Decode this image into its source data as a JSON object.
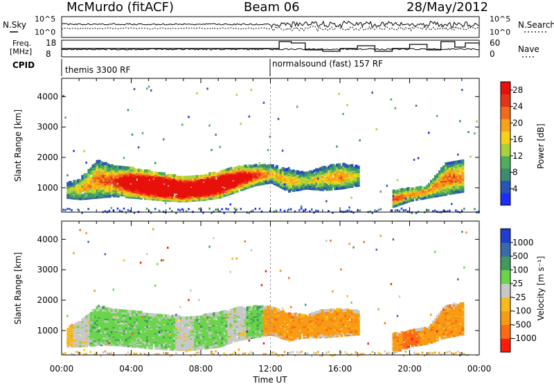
{
  "header": {
    "station": "McMurdo (fitACF)",
    "beam": "Beam 06",
    "date": "28/May/2012"
  },
  "noise_panel": {
    "left_label": "N.Sky",
    "right_label": "N.Search",
    "left_ticks": [
      "10^5",
      "10^0"
    ],
    "right_ticks": [
      "10^5",
      "10^0"
    ]
  },
  "freq_panel": {
    "left_label_line1": "Freq.",
    "left_label_line2": "[MHz]",
    "left_ticks": [
      "18",
      "8"
    ],
    "right_label": "Nave",
    "right_ticks": [
      "60",
      "0"
    ]
  },
  "cpid": {
    "label": "CPID",
    "modes": [
      "themis 3300 RF",
      "normalsound (fast) 157 RF"
    ]
  },
  "chart_data": [
    {
      "type": "heatmap",
      "title": "Beam 06",
      "xlabel": "Time UT",
      "ylabel": "Slant Range [km]",
      "x_ticks": [
        "00:00",
        "04:00",
        "08:00",
        "12:00",
        "16:00",
        "20:00",
        "00:00"
      ],
      "x_range_hours": [
        0,
        24
      ],
      "ylim": [
        200,
        4600
      ],
      "y_ticks": [
        1000,
        2000,
        3000,
        4000
      ],
      "colorbar": {
        "label": "Power [dB]",
        "ticks": [
          4,
          8,
          12,
          16,
          20,
          24,
          28
        ],
        "range": [
          0,
          30
        ]
      },
      "echo_regions": [
        {
          "t": 0.2,
          "r0": 700,
          "r1": 1150,
          "level": 6
        },
        {
          "t": 1.0,
          "r0": 650,
          "r1": 1300,
          "level": 10
        },
        {
          "t": 2.0,
          "r0": 700,
          "r1": 1900,
          "level": 12
        },
        {
          "t": 3.0,
          "r0": 750,
          "r1": 1700,
          "level": 14
        },
        {
          "t": 4.0,
          "r0": 700,
          "r1": 1650,
          "level": 22
        },
        {
          "t": 5.0,
          "r0": 650,
          "r1": 1550,
          "level": 27
        },
        {
          "t": 6.0,
          "r0": 600,
          "r1": 1450,
          "level": 29
        },
        {
          "t": 7.0,
          "r0": 580,
          "r1": 1350,
          "level": 29
        },
        {
          "t": 8.0,
          "r0": 620,
          "r1": 1400,
          "level": 28
        },
        {
          "t": 9.0,
          "r0": 700,
          "r1": 1550,
          "level": 27
        },
        {
          "t": 10.0,
          "r0": 900,
          "r1": 1700,
          "level": 22
        },
        {
          "t": 11.0,
          "r0": 1100,
          "r1": 1750,
          "level": 16
        },
        {
          "t": 12.0,
          "r0": 1200,
          "r1": 1750,
          "level": 10
        },
        {
          "t": 13.0,
          "r0": 900,
          "r1": 1600,
          "level": 10
        },
        {
          "t": 14.0,
          "r0": 1000,
          "r1": 1500,
          "level": 8
        },
        {
          "t": 15.0,
          "r0": 950,
          "r1": 1700,
          "level": 9
        },
        {
          "t": 16.0,
          "r0": 1000,
          "r1": 1800,
          "level": 12
        },
        {
          "t": 17.0,
          "r0": 1100,
          "r1": 1700,
          "level": 7
        },
        {
          "t": 19.0,
          "r0": 400,
          "r1": 900,
          "level": 14
        },
        {
          "t": 20.0,
          "r0": 600,
          "r1": 1000,
          "level": 12
        },
        {
          "t": 21.0,
          "r0": 700,
          "r1": 1100,
          "level": 11
        },
        {
          "t": 22.0,
          "r0": 800,
          "r1": 1800,
          "level": 13
        },
        {
          "t": 23.0,
          "r0": 900,
          "r1": 1900,
          "level": 12
        }
      ]
    },
    {
      "type": "heatmap",
      "xlabel": "Time UT",
      "ylabel": "Slant Range [km]",
      "x_ticks": [
        "00:00",
        "04:00",
        "08:00",
        "12:00",
        "16:00",
        "20:00",
        "00:00"
      ],
      "x_range_hours": [
        0,
        24
      ],
      "ylim": [
        200,
        4600
      ],
      "y_ticks": [
        1000,
        2000,
        3000,
        4000
      ],
      "colorbar": {
        "label": "Velocity [m s⁻¹]",
        "ticks": [
          "1000",
          "500",
          "100",
          "25",
          "-25",
          "-100",
          "-500",
          "-1000"
        ]
      },
      "echo_regions": [
        {
          "t": 0.2,
          "r0": 500,
          "r1": 1100,
          "level": "-25"
        },
        {
          "t": 1.0,
          "r0": 500,
          "r1": 1300,
          "level": "25"
        },
        {
          "t": 2.0,
          "r0": 550,
          "r1": 1800,
          "level": "100"
        },
        {
          "t": 3.0,
          "r0": 550,
          "r1": 1700,
          "level": "100"
        },
        {
          "t": 4.0,
          "r0": 500,
          "r1": 1650,
          "level": "100"
        },
        {
          "t": 5.0,
          "r0": 450,
          "r1": 1550,
          "level": "100"
        },
        {
          "t": 6.0,
          "r0": 400,
          "r1": 1500,
          "level": "100"
        },
        {
          "t": 7.0,
          "r0": 380,
          "r1": 1450,
          "level": "25"
        },
        {
          "t": 8.0,
          "r0": 420,
          "r1": 1500,
          "level": "100"
        },
        {
          "t": 9.0,
          "r0": 500,
          "r1": 1600,
          "level": "100"
        },
        {
          "t": 10.0,
          "r0": 700,
          "r1": 1750,
          "level": "25"
        },
        {
          "t": 11.0,
          "r0": 800,
          "r1": 1800,
          "level": "100"
        },
        {
          "t": 12.0,
          "r0": 900,
          "r1": 1800,
          "level": "-100"
        },
        {
          "t": 13.0,
          "r0": 700,
          "r1": 1600,
          "level": "-100"
        },
        {
          "t": 14.0,
          "r0": 800,
          "r1": 1500,
          "level": "-100"
        },
        {
          "t": 15.0,
          "r0": 800,
          "r1": 1700,
          "level": "-100"
        },
        {
          "t": 16.0,
          "r0": 850,
          "r1": 1700,
          "level": "-100"
        },
        {
          "t": 17.0,
          "r0": 900,
          "r1": 1650,
          "level": "-100"
        },
        {
          "t": 19.0,
          "r0": 300,
          "r1": 900,
          "level": "-100"
        },
        {
          "t": 20.0,
          "r0": 500,
          "r1": 1000,
          "level": "-500"
        },
        {
          "t": 21.0,
          "r0": 600,
          "r1": 1100,
          "level": "-100"
        },
        {
          "t": 22.0,
          "r0": 800,
          "r1": 1800,
          "level": "-100"
        },
        {
          "t": 23.0,
          "r0": 900,
          "r1": 1900,
          "level": "-100"
        }
      ]
    }
  ],
  "colors": {
    "power_scale": [
      "#1c2dff",
      "#2854b8",
      "#3d8c6e",
      "#4fae5d",
      "#a9d23a",
      "#f7d118",
      "#f7a21a",
      "#f26b1a",
      "#e8321a",
      "#e8100a"
    ],
    "velocity_scale": [
      "#ff1a0a",
      "#ff6a14",
      "#f79a14",
      "#f7bb1a",
      "#c8c8c8",
      "#6ad44a",
      "#3f9a60",
      "#3a6aa8",
      "#1f3dd0"
    ],
    "ground_scatter": "#b4b4b4"
  }
}
